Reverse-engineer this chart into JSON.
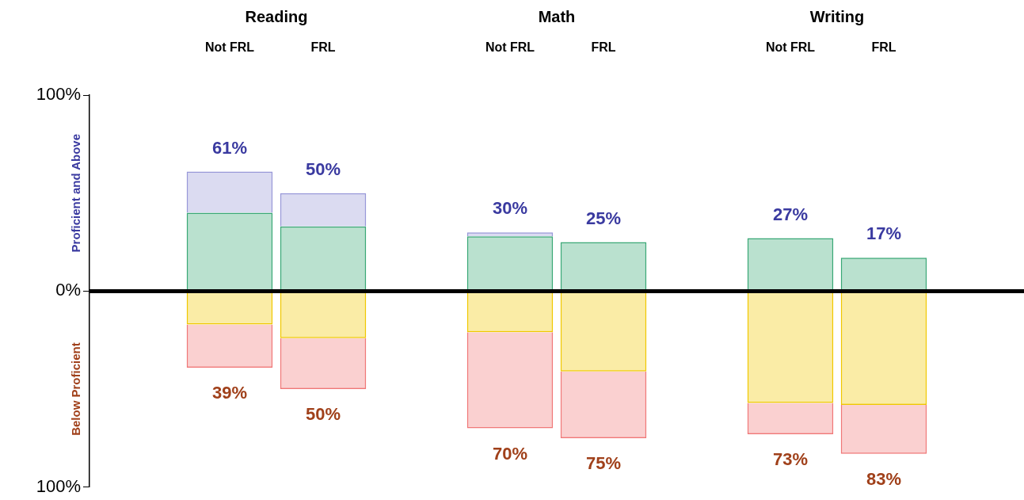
{
  "chart_data": {
    "type": "bar",
    "stacked": true,
    "categories": [
      "Not FRL",
      "FRL",
      null,
      "Not FRL",
      "FRL",
      null,
      "Not FRL",
      "FRL"
    ],
    "series": [
      {
        "color": "#3aa876",
        "values": [
          40,
          33,
          null,
          28,
          25,
          null,
          27,
          17
        ]
      },
      {
        "color": "#9898d8",
        "values": [
          21,
          17,
          null,
          2,
          0,
          null,
          0,
          0
        ]
      },
      {
        "color": "#f0c800",
        "values": [
          -17,
          -24,
          null,
          -21,
          -41,
          null,
          -57,
          -58
        ]
      },
      {
        "color": "#f07878",
        "values": [
          -22,
          -26,
          null,
          -49,
          -34,
          null,
          -16,
          -25
        ]
      }
    ],
    "totals": [
      [
        "61%",
        "39%"
      ],
      [
        "50%",
        "50%"
      ],
      null,
      [
        "30%",
        "70%"
      ],
      [
        "25%",
        "75%"
      ],
      null,
      [
        "27%",
        "73%"
      ],
      [
        "17%",
        "83%"
      ]
    ],
    "ylim": [
      -100,
      100
    ],
    "yticks": [
      {
        "value": -100,
        "label": "100%"
      },
      {
        "value": 0,
        "label": "0%"
      },
      {
        "value": 100,
        "label": "100%"
      }
    ],
    "ref_lines": [
      {
        "axis": "y",
        "value": 0,
        "color": "#000000"
      }
    ],
    "annotations": [
      "Reading",
      "Math",
      "Writing",
      "Proficient and Above",
      "Below Proficient"
    ],
    "grid": false,
    "legend": false
  }
}
